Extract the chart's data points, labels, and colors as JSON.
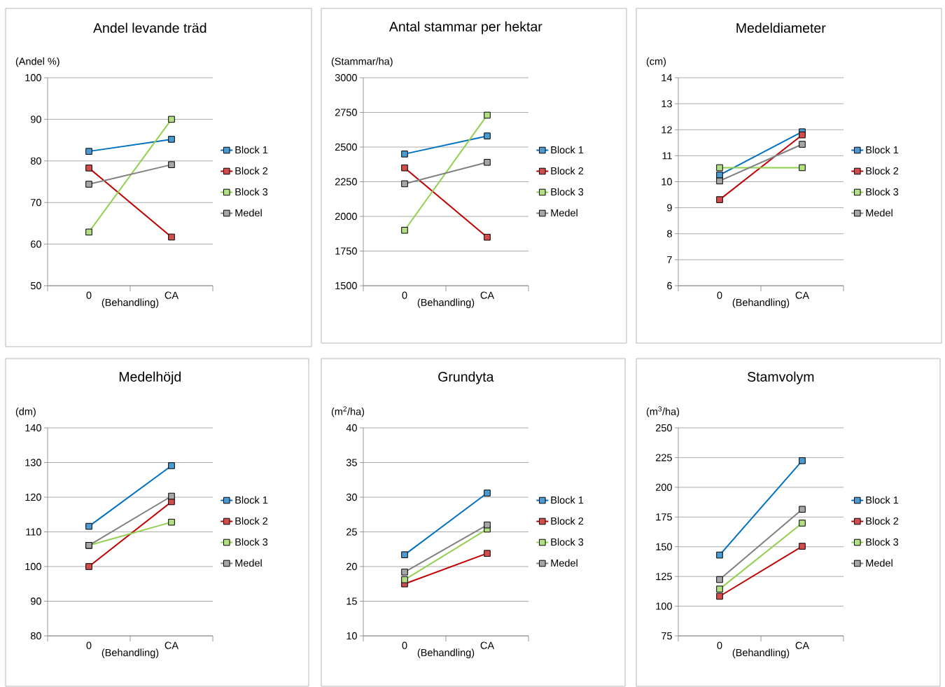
{
  "chart_data": [
    {
      "type": "line",
      "title": "Andel levande träd",
      "ylabel": "(Andel %)",
      "xlabel": "(Behandling)",
      "categories": [
        "0",
        "CA"
      ],
      "ylim": [
        50,
        100
      ],
      "yticks": [
        50,
        60,
        70,
        80,
        90,
        100
      ],
      "grid": "y",
      "legend": "right",
      "marker": "square",
      "line_style": "solid",
      "series": [
        {
          "name": "Block 1",
          "color": "#0070c0",
          "values": [
            82.3,
            85.2
          ]
        },
        {
          "name": "Block 2",
          "color": "#c00000",
          "values": [
            78.3,
            61.7
          ]
        },
        {
          "name": "Block 3",
          "color": "#92d050",
          "values": [
            62.9,
            90
          ]
        },
        {
          "name": "Medel",
          "color": "#808080",
          "values": [
            74.4,
            79.1
          ]
        }
      ]
    },
    {
      "type": "line",
      "title": "Antal stammar per hektar",
      "ylabel": "(Stammar/ha)",
      "xlabel": "(Behandling)",
      "categories": [
        "0",
        "CA"
      ],
      "ylim": [
        1500,
        3000
      ],
      "yticks": [
        1500,
        1750,
        2000,
        2250,
        2500,
        2750,
        3000
      ],
      "grid": "y",
      "legend": "right",
      "marker": "square",
      "line_style": "solid",
      "series": [
        {
          "name": "Block 1",
          "color": "#0070c0",
          "values": [
            2450,
            2580
          ]
        },
        {
          "name": "Block 2",
          "color": "#c00000",
          "values": [
            2350,
            1850
          ]
        },
        {
          "name": "Block 3",
          "color": "#92d050",
          "values": [
            1900,
            2730
          ]
        },
        {
          "name": "Medel",
          "color": "#808080",
          "values": [
            2235,
            2390
          ]
        }
      ]
    },
    {
      "type": "line",
      "title": "Medeldiameter",
      "ylabel": "(cm)",
      "xlabel": "(Behandling)",
      "categories": [
        "0",
        "CA"
      ],
      "ylim": [
        6,
        14
      ],
      "yticks": [
        6,
        7,
        8,
        9,
        10,
        11,
        12,
        13,
        14
      ],
      "grid": "y",
      "legend": "right",
      "marker": "square",
      "line_style": "solid",
      "series": [
        {
          "name": "Block 1",
          "color": "#0070c0",
          "values": [
            10.26,
            11.92
          ]
        },
        {
          "name": "Block 2",
          "color": "#c00000",
          "values": [
            9.31,
            11.8
          ]
        },
        {
          "name": "Block 3",
          "color": "#92d050",
          "values": [
            10.54,
            10.54
          ]
        },
        {
          "name": "Medel",
          "color": "#808080",
          "values": [
            10.03,
            11.44
          ]
        }
      ]
    },
    {
      "type": "line",
      "title": "Medelhöjd",
      "ylabel": "(dm)",
      "xlabel": "(Behandling)",
      "categories": [
        "0",
        "CA"
      ],
      "ylim": [
        80,
        140
      ],
      "yticks": [
        80,
        90,
        100,
        110,
        120,
        130,
        140
      ],
      "grid": "y",
      "legend": "right",
      "marker": "square",
      "line_style": "solid",
      "series": [
        {
          "name": "Block 1",
          "color": "#0070c0",
          "values": [
            111.6,
            129.1
          ]
        },
        {
          "name": "Block 2",
          "color": "#c00000",
          "values": [
            100,
            118.7
          ]
        },
        {
          "name": "Block 3",
          "color": "#92d050",
          "values": [
            106.1,
            112.8
          ]
        },
        {
          "name": "Medel",
          "color": "#808080",
          "values": [
            106.1,
            120.3
          ]
        }
      ]
    },
    {
      "type": "line",
      "title": "Grundyta",
      "ylabel": "(m$^{2}$/ha)",
      "xlabel": "(Behandling)",
      "categories": [
        "0",
        "CA"
      ],
      "ylim": [
        10,
        40
      ],
      "yticks": [
        10,
        15,
        20,
        25,
        30,
        35,
        40
      ],
      "grid": "y",
      "legend": "right",
      "marker": "square",
      "line_style": "solid",
      "series": [
        {
          "name": "Block 1",
          "color": "#0070c0",
          "values": [
            21.7,
            30.6
          ]
        },
        {
          "name": "Block 2",
          "color": "#c00000",
          "values": [
            17.5,
            21.9
          ]
        },
        {
          "name": "Block 3",
          "color": "#92d050",
          "values": [
            18.1,
            25.4
          ]
        },
        {
          "name": "Medel",
          "color": "#808080",
          "values": [
            19.2,
            26.0
          ]
        }
      ]
    },
    {
      "type": "line",
      "title": "Stamvolym",
      "ylabel": "(m$^{3}$/ha)",
      "xlabel": "(Behandling)",
      "categories": [
        "0",
        "CA"
      ],
      "ylim": [
        75,
        250
      ],
      "yticks": [
        75,
        100,
        125,
        150,
        175,
        200,
        225,
        250
      ],
      "grid": "y",
      "legend": "right",
      "marker": "square",
      "line_style": "solid",
      "series": [
        {
          "name": "Block 1",
          "color": "#0070c0",
          "values": [
            143,
            222.4
          ]
        },
        {
          "name": "Block 2",
          "color": "#c00000",
          "values": [
            108.3,
            150.4
          ]
        },
        {
          "name": "Block 3",
          "color": "#92d050",
          "values": [
            114.4,
            169.9
          ]
        },
        {
          "name": "Medel",
          "color": "#808080",
          "values": [
            122.4,
            181.5
          ]
        }
      ]
    }
  ]
}
